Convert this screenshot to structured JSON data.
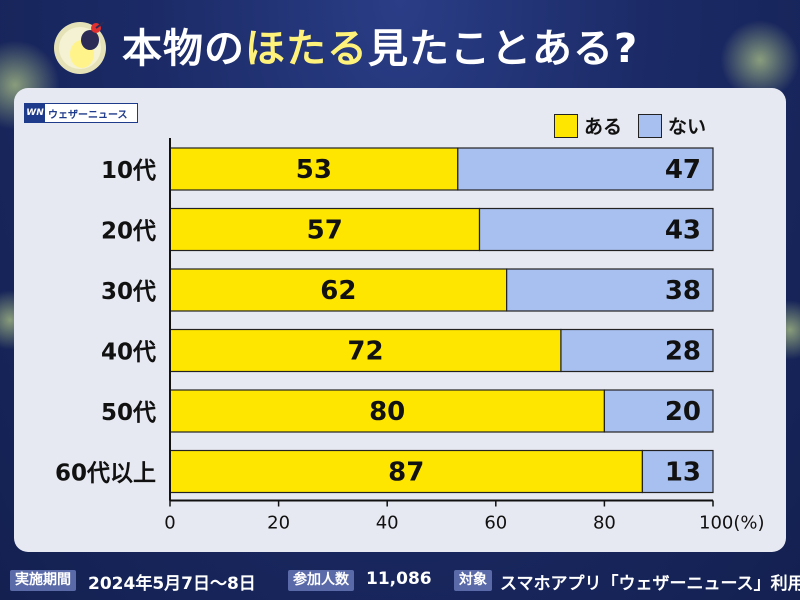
{
  "header": {
    "title_pre": "本物の",
    "title_highlight": "ほたる",
    "title_post": "見たことある?"
  },
  "brand": {
    "logo_mark": "WN",
    "logo_text": "ウェザーニュース"
  },
  "colors": {
    "yes": "#ffe600",
    "no": "#a8c0f0",
    "axis": "#111111",
    "background": "#1b2a66"
  },
  "chart_data": {
    "type": "bar",
    "orientation": "horizontal",
    "stacked": true,
    "categories": [
      "10代",
      "20代",
      "30代",
      "40代",
      "50代",
      "60代以上"
    ],
    "series": [
      {
        "name": "ある",
        "values": [
          53,
          57,
          62,
          72,
          80,
          87
        ]
      },
      {
        "name": "ない",
        "values": [
          47,
          43,
          38,
          28,
          20,
          13
        ]
      }
    ],
    "xlim": [
      0,
      100
    ],
    "xticks": [
      "0",
      "20",
      "40",
      "60",
      "80",
      "100(%)"
    ],
    "legend": "top-right",
    "grid": false
  },
  "footer": {
    "period_label": "実施期間",
    "period_value": "2024年5月7日〜8日",
    "participants_label": "参加人数",
    "participants_value": "11,086",
    "target_label": "対象",
    "target_value": "スマホアプリ「ウェザーニュース」利用者"
  }
}
